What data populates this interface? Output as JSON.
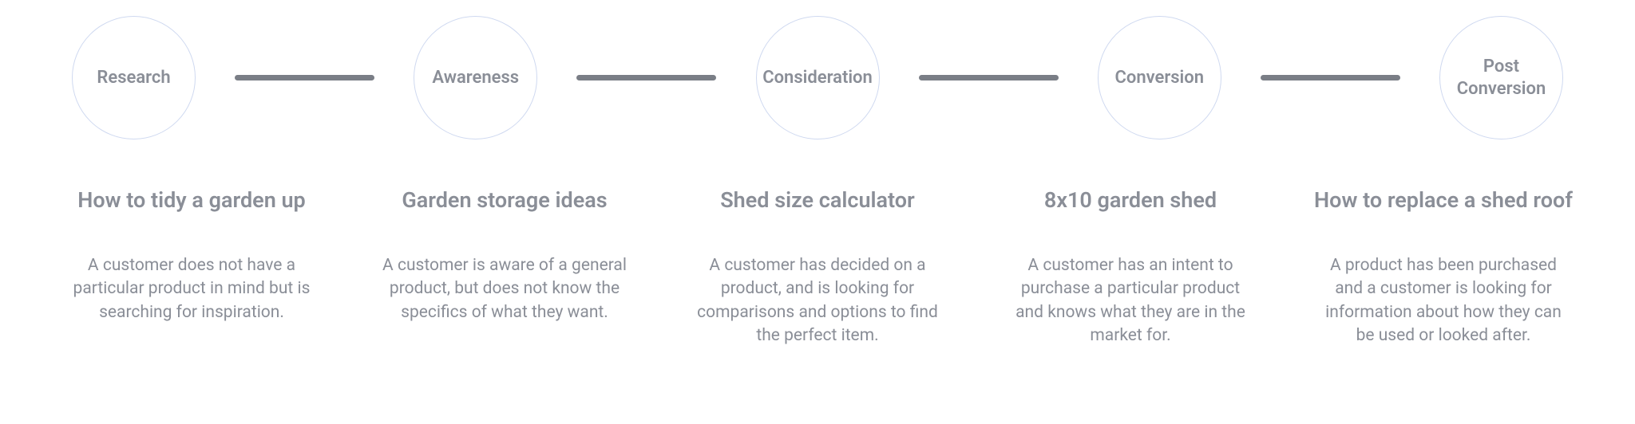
{
  "diagram": {
    "type": "flowchart",
    "background_color": "#ffffff",
    "circle_border_color": "#cfd9f0",
    "connector_color": "#7a7e86",
    "text_color": "#8a8e97",
    "circle_label_fontsize": 22,
    "title_fontsize": 27,
    "description_fontsize": 21,
    "circle_diameter": 155,
    "connector_height": 7,
    "stages": [
      {
        "circle_label": "Research",
        "title": "How to tidy a garden up",
        "description": "A customer does not have a particular product in mind but is searching for inspiration."
      },
      {
        "circle_label": "Awareness",
        "title": "Garden storage ideas",
        "description": "A customer is aware of a general product, but does not know the specifics of what they want."
      },
      {
        "circle_label": "Consideration",
        "title": "Shed size calculator",
        "description": "A customer has decided on a product, and is looking for comparisons and options to find the perfect item."
      },
      {
        "circle_label": "Conversion",
        "title": "8x10 garden shed",
        "description": "A customer has an intent to purchase a particular product and knows what they are in the market for."
      },
      {
        "circle_label": "Post Conversion",
        "title": "How to replace a shed roof",
        "description": "A product has been purchased and a customer is looking for information about how they can be used or looked after."
      }
    ]
  }
}
